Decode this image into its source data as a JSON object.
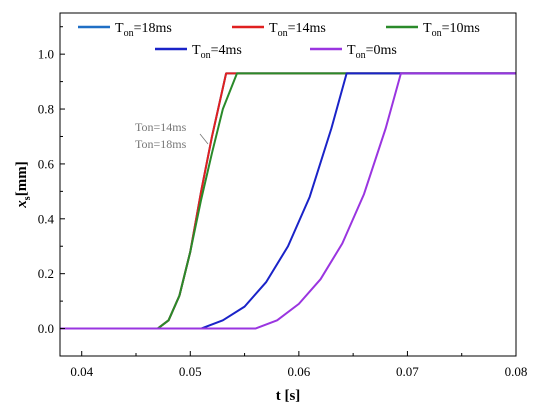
{
  "chart_data": {
    "type": "line",
    "xlabel": "t [s]",
    "ylabel": {
      "main": "x",
      "sub": "s",
      "suffix": "[mm]"
    },
    "xlim": [
      0.038,
      0.08
    ],
    "ylim": [
      -0.1,
      1.15
    ],
    "xticks": [
      0.04,
      0.05,
      0.06,
      0.07,
      0.08
    ],
    "yticks": [
      0.0,
      0.2,
      0.4,
      0.6,
      0.8,
      1.0
    ],
    "xtick_labels": [
      "0.04",
      "0.05",
      "0.06",
      "0.07",
      "0.08"
    ],
    "ytick_labels": [
      "0.0",
      "0.2",
      "0.4",
      "0.6",
      "0.8",
      "1.0"
    ],
    "grid": false,
    "legend_position": "top",
    "legend": [
      {
        "main": "T",
        "sub": "on",
        "rest": "=18ms",
        "color": "#1f6fc5"
      },
      {
        "main": "T",
        "sub": "on",
        "rest": "=14ms",
        "color": "#e02020"
      },
      {
        "main": "T",
        "sub": "on",
        "rest": "=10ms",
        "color": "#2a8a2a"
      },
      {
        "main": "T",
        "sub": "on",
        "rest": "=4ms",
        "color": "#1a23c8"
      },
      {
        "main": "T",
        "sub": "on",
        "rest": "=0ms",
        "color": "#9a35e0"
      }
    ],
    "annotations": [
      {
        "lines": [
          "Ton=14ms",
          "Ton=18ms"
        ],
        "color": "#777777"
      }
    ],
    "series": [
      {
        "name": "Ton=18ms",
        "color": "#1f6fc5",
        "x": [
          0.038,
          0.047,
          0.048,
          0.049,
          0.05,
          0.051,
          0.052,
          0.0533,
          0.08
        ],
        "y": [
          0.0,
          0.0,
          0.03,
          0.12,
          0.28,
          0.5,
          0.7,
          0.93,
          0.93
        ]
      },
      {
        "name": "Ton=14ms",
        "color": "#e02020",
        "x": [
          0.038,
          0.047,
          0.048,
          0.049,
          0.05,
          0.051,
          0.052,
          0.0533,
          0.08
        ],
        "y": [
          0.0,
          0.0,
          0.03,
          0.12,
          0.28,
          0.5,
          0.7,
          0.93,
          0.93
        ]
      },
      {
        "name": "Ton=10ms",
        "color": "#2a8a2a",
        "x": [
          0.038,
          0.047,
          0.048,
          0.049,
          0.05,
          0.051,
          0.052,
          0.053,
          0.0543,
          0.08
        ],
        "y": [
          0.0,
          0.0,
          0.03,
          0.12,
          0.28,
          0.47,
          0.64,
          0.8,
          0.93,
          0.93
        ]
      },
      {
        "name": "Ton=4ms",
        "color": "#1a23c8",
        "x": [
          0.038,
          0.051,
          0.053,
          0.055,
          0.057,
          0.059,
          0.061,
          0.063,
          0.0644,
          0.08
        ],
        "y": [
          0.0,
          0.0,
          0.03,
          0.08,
          0.17,
          0.3,
          0.48,
          0.73,
          0.93,
          0.93
        ]
      },
      {
        "name": "Ton=0ms",
        "color": "#9a35e0",
        "x": [
          0.038,
          0.056,
          0.058,
          0.06,
          0.062,
          0.064,
          0.066,
          0.068,
          0.0694,
          0.08
        ],
        "y": [
          0.0,
          0.0,
          0.03,
          0.09,
          0.18,
          0.31,
          0.49,
          0.73,
          0.93,
          0.93
        ]
      }
    ]
  }
}
